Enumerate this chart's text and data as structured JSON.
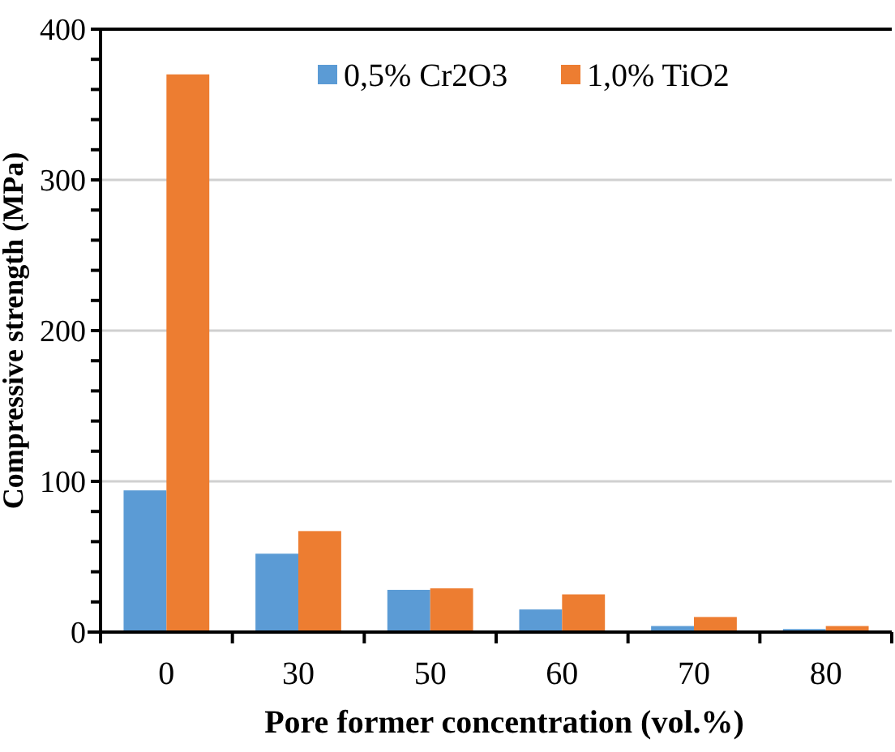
{
  "chart_data": {
    "type": "bar",
    "xlabel": "Pore former concentration (vol.%)",
    "ylabel": "Compressive strength (MPa)",
    "categories": [
      "0",
      "30",
      "50",
      "60",
      "70",
      "80"
    ],
    "series": [
      {
        "name": "0,5% Cr2O3",
        "color": "#5b9bd5",
        "values": [
          94,
          52,
          28,
          15,
          4,
          2
        ]
      },
      {
        "name": "1,0% TiO2",
        "color": "#ed7d31",
        "values": [
          370,
          67,
          29,
          25,
          10,
          4
        ]
      }
    ],
    "ylim": [
      0,
      400
    ],
    "yticks": [
      0,
      {
        "value": 20,
        "label": null
      },
      {
        "value": 40,
        "label": null
      },
      {
        "value": 60,
        "label": null
      },
      {
        "value": 80,
        "label": null
      },
      100,
      {
        "value": 120,
        "label": null
      },
      {
        "value": 140,
        "label": null
      },
      {
        "value": 160,
        "label": null
      },
      {
        "value": 180,
        "label": null
      },
      200,
      {
        "value": 220,
        "label": null
      },
      {
        "value": 240,
        "label": null
      },
      {
        "value": 260,
        "label": null
      },
      {
        "value": 280,
        "label": null
      },
      300,
      {
        "value": 320,
        "label": null
      },
      {
        "value": 340,
        "label": null
      },
      {
        "value": 360,
        "label": null
      },
      {
        "value": 380,
        "label": null
      },
      400
    ],
    "grid": "y",
    "legend": "top"
  }
}
